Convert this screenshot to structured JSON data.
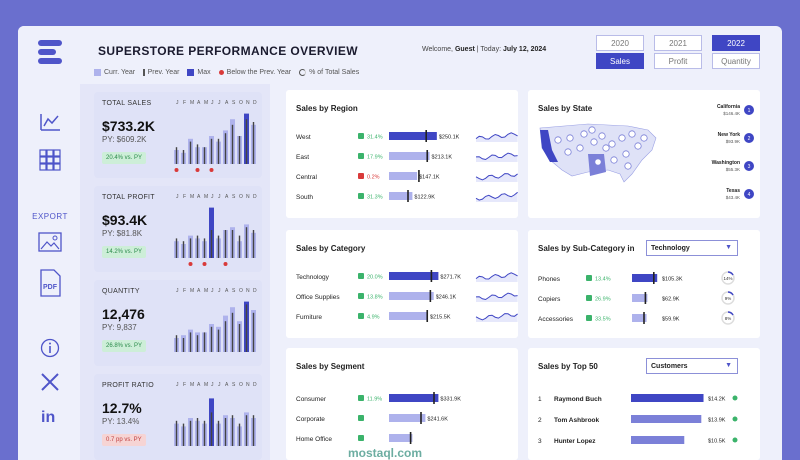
{
  "header": {
    "title": "SUPERSTORE PERFORMANCE OVERVIEW",
    "welcome_prefix": "Welcome,",
    "user": "Guest",
    "today_prefix": "| Today:",
    "date": "July 12, 2024",
    "legend": [
      "Curr. Year",
      "Prev. Year",
      "Max",
      "Below the Prev. Year",
      "% of Total Sales"
    ],
    "years": [
      "2020",
      "2021",
      "2022"
    ],
    "selected_year": "2022",
    "metrics": [
      "Sales",
      "Profit",
      "Quantity"
    ],
    "selected_metric": "Sales"
  },
  "sidebar": {
    "export_label": "EXPORT"
  },
  "months": [
    "J",
    "F",
    "M",
    "A",
    "M",
    "J",
    "J",
    "A",
    "S",
    "O",
    "N",
    "D"
  ],
  "kpis": [
    {
      "label": "TOTAL SALES",
      "value": "$733.2K",
      "py": "PY: $609.2K",
      "change": "20.4% vs. PY",
      "negative": false,
      "curr": [
        0.25,
        0.2,
        0.45,
        0.3,
        0.3,
        0.5,
        0.4,
        0.6,
        0.8,
        0.5,
        0.9,
        0.7
      ],
      "prev": [
        0.3,
        0.25,
        0.4,
        0.35,
        0.3,
        0.45,
        0.45,
        0.55,
        0.7,
        0.5,
        0.8,
        0.75
      ],
      "max_index": 10,
      "below": [
        0,
        3,
        5
      ]
    },
    {
      "label": "TOTAL PROFIT",
      "value": "$93.4K",
      "py": "PY: $81.8K",
      "change": "14.2% vs. PY",
      "negative": false,
      "curr": [
        0.3,
        0.25,
        0.4,
        0.35,
        0.3,
        0.9,
        0.35,
        0.5,
        0.55,
        0.3,
        0.6,
        0.45
      ],
      "prev": [
        0.35,
        0.3,
        0.35,
        0.4,
        0.35,
        0.5,
        0.4,
        0.5,
        0.5,
        0.4,
        0.55,
        0.5
      ],
      "max_index": 5,
      "below": [
        2,
        4,
        7
      ]
    },
    {
      "label": "QUANTITY",
      "value": "12,476",
      "py": "PY: 9,837",
      "change": "26.8% vs. PY",
      "negative": false,
      "curr": [
        0.25,
        0.3,
        0.4,
        0.35,
        0.35,
        0.5,
        0.45,
        0.65,
        0.8,
        0.55,
        0.9,
        0.75
      ],
      "prev": [
        0.3,
        0.25,
        0.35,
        0.3,
        0.35,
        0.45,
        0.4,
        0.55,
        0.7,
        0.5,
        0.85,
        0.7
      ],
      "max_index": 10,
      "below": []
    },
    {
      "label": "PROFIT RATIO",
      "value": "12.7%",
      "py": "PY: 13.4%",
      "change": "0.7 pp vs. PY",
      "negative": true,
      "curr": [
        0.4,
        0.35,
        0.5,
        0.45,
        0.4,
        0.85,
        0.4,
        0.55,
        0.5,
        0.35,
        0.6,
        0.5
      ],
      "prev": [
        0.45,
        0.4,
        0.45,
        0.5,
        0.45,
        0.6,
        0.45,
        0.5,
        0.55,
        0.4,
        0.55,
        0.55
      ],
      "max_index": 5,
      "below": []
    }
  ],
  "cards": {
    "region": {
      "title": "Sales by Region",
      "rows": [
        {
          "name": "West",
          "pct": "31.4%",
          "trend": "up",
          "value": "$250.1K",
          "frac": 0.92,
          "py": 0.7
        },
        {
          "name": "East",
          "pct": "17.9%",
          "trend": "up",
          "value": "$213.1K",
          "frac": 0.78,
          "py": 0.72
        },
        {
          "name": "Central",
          "pct": "0.2%",
          "trend": "down",
          "value": "$147.1K",
          "frac": 0.54,
          "py": 0.56
        },
        {
          "name": "South",
          "pct": "31.3%",
          "trend": "up",
          "value": "$122.9K",
          "frac": 0.45,
          "py": 0.35
        }
      ]
    },
    "category": {
      "title": "Sales by Category",
      "rows": [
        {
          "name": "Technology",
          "pct": "20.0%",
          "trend": "up",
          "value": "$271.7K",
          "frac": 0.95,
          "py": 0.8
        },
        {
          "name": "Office Supplies",
          "pct": "13.8%",
          "trend": "up",
          "value": "$246.1K",
          "frac": 0.86,
          "py": 0.78
        },
        {
          "name": "Furniture",
          "pct": "4.9%",
          "trend": "up",
          "value": "$215.5K",
          "frac": 0.75,
          "py": 0.72
        }
      ]
    },
    "segment": {
      "title": "Sales by Segment",
      "rows": [
        {
          "name": "Consumer",
          "pct": "11.9%",
          "trend": "up",
          "value": "$331.9K",
          "frac": 0.95,
          "py": 0.85
        },
        {
          "name": "Corporate",
          "pct": "",
          "trend": "up",
          "value": "$241.6K",
          "frac": 0.7,
          "py": 0.6
        },
        {
          "name": "Home Office",
          "pct": "",
          "trend": "up",
          "value": "",
          "frac": 0.45,
          "py": 0.4
        }
      ]
    },
    "state": {
      "title": "Sales by State",
      "top": [
        {
          "rank": "1",
          "name": "California",
          "value": "$146.4K"
        },
        {
          "rank": "2",
          "name": "New York",
          "value": "$93.9K"
        },
        {
          "rank": "3",
          "name": "Washington",
          "value": "$55.3K"
        },
        {
          "rank": "4",
          "name": "Texas",
          "value": "$43.4K"
        }
      ]
    },
    "subcategory": {
      "title": "Sales by Sub-Category in",
      "selected": "Technology",
      "rows": [
        {
          "name": "Phones",
          "pct": "13.4%",
          "value": "$105.3K",
          "frac": 0.9,
          "py": 0.75,
          "share": "14%"
        },
        {
          "name": "Copiers",
          "pct": "26.9%",
          "value": "$62.9K",
          "frac": 0.55,
          "py": 0.45,
          "share": "9%"
        },
        {
          "name": "Accessories",
          "pct": "33.5%",
          "value": "$59.9K",
          "frac": 0.52,
          "py": 0.4,
          "share": "8%"
        }
      ]
    },
    "top50": {
      "title": "Sales by Top 50",
      "selected": "Customers",
      "rows": [
        {
          "rank": "1",
          "name": "Raymond Buch",
          "value": "$14.2K",
          "frac": 0.98
        },
        {
          "rank": "2",
          "name": "Tom Ashbrook",
          "value": "$13.9K",
          "frac": 0.95
        },
        {
          "rank": "3",
          "name": "Hunter Lopez",
          "value": "$10.5K",
          "frac": 0.72
        }
      ]
    }
  },
  "colors": {
    "accent": "#3f46c4",
    "light": "#aeb2ec",
    "green": "#3bb36b",
    "red": "#d93a3a"
  },
  "watermark": "mostaql.com"
}
